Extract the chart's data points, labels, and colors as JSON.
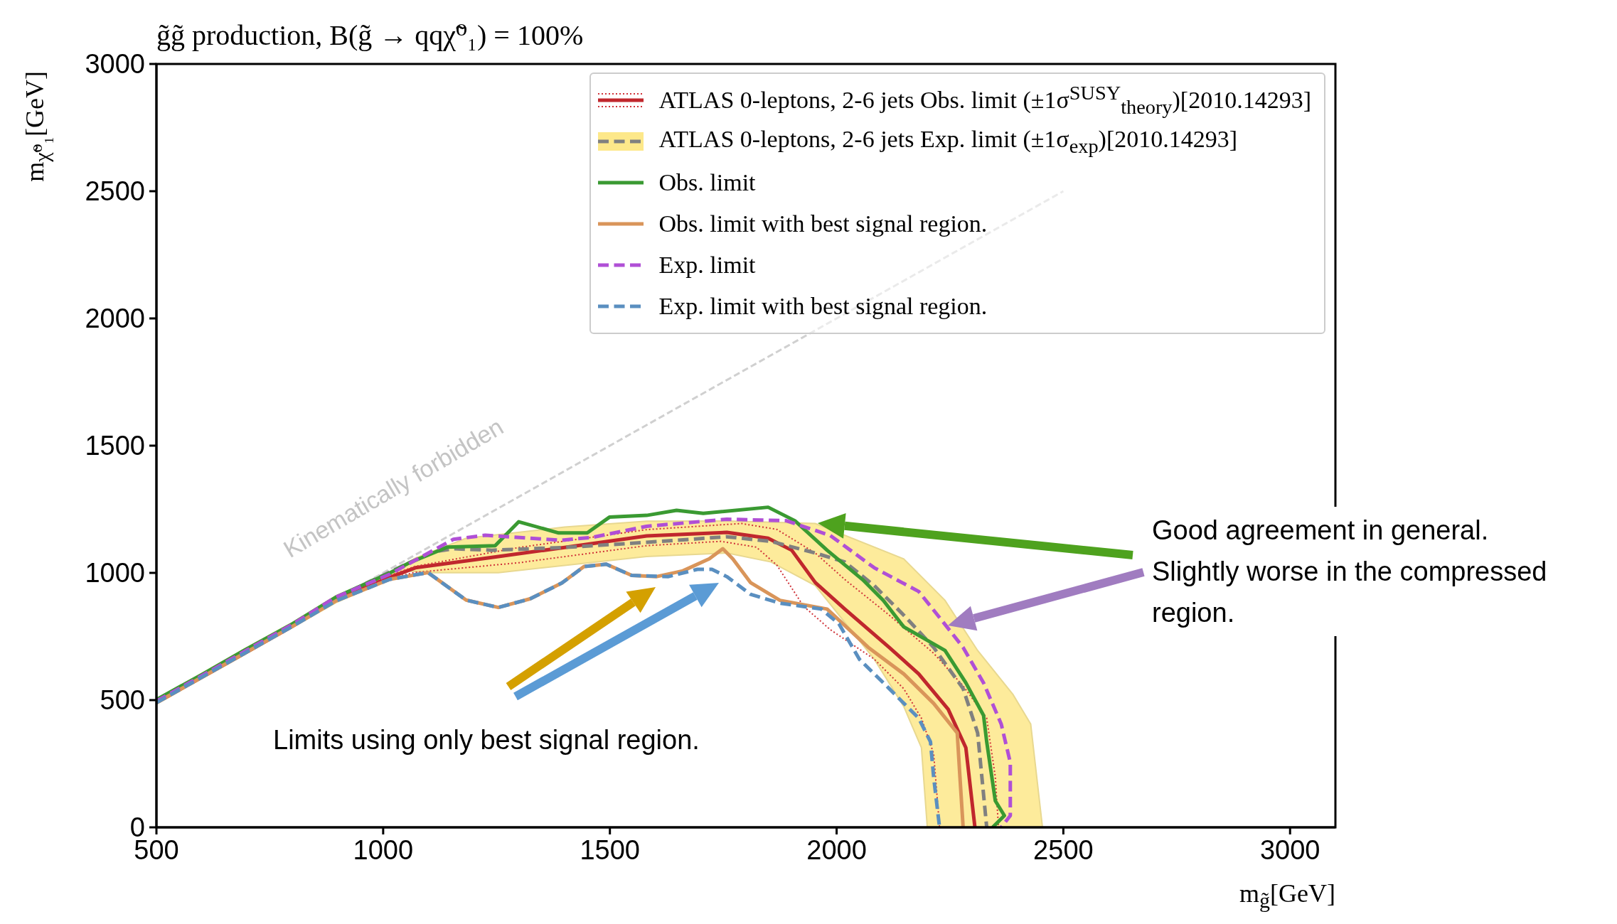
{
  "chart_data": {
    "type": "line",
    "title": "g̃g̃ production, B(g̃ → qqχ̃⁰₁) = 100%",
    "xlabel": "m$_{g̃}$[GeV]",
    "ylabel": "m$_{χ̃⁰₁}$[GeV]",
    "xlim": [
      500,
      3100
    ],
    "xticks": [
      500,
      1000,
      1500,
      2000,
      2500,
      3000
    ],
    "ylim": [
      0,
      3000
    ],
    "yticks": [
      0,
      500,
      1000,
      1500,
      2000,
      2500,
      3000
    ],
    "grid": false,
    "legend": "top right",
    "marker": "none",
    "annotations": [
      "Kinematically forbidden",
      "Good agreement in general. Slightly worse in the compressed region.",
      "Limits using only best signal region."
    ],
    "series": [
      {
        "color": "#d0d0d0",
        "line_style": "dashed",
        "x": [
          500,
          2500
        ],
        "values": [
          500,
          2500
        ]
      },
      {
        "name": "ATLAS 0-leptons,  2-6 jets Obs. limit (±1σ$^{SUSY}$$_{theory}$)[2010.14293]",
        "color": "#c0272d",
        "line_style": "solid",
        "x": [
          500,
          600,
          693,
          800,
          896,
          1015,
          1071,
          1254,
          1400,
          1581,
          1758,
          1849,
          1901,
          1953,
          2018,
          2116,
          2181,
          2246,
          2285,
          2305
        ],
        "values": [
          490,
          590,
          683,
          790,
          895,
          983,
          1020,
          1064,
          1100,
          1145,
          1159,
          1136,
          1089,
          962,
          858,
          707,
          603,
          464,
          313,
          0
        ]
      },
      {
        "color": "#d0343a",
        "line_style": "dotted",
        "x": [
          500,
          600,
          693,
          800,
          896,
          1015,
          1071,
          1300,
          1581,
          1790,
          1868,
          1953,
          2018,
          2116,
          2214,
          2279,
          2331,
          2350,
          2357
        ],
        "values": [
          490,
          590,
          683,
          790,
          895,
          990,
          1026,
          1100,
          1170,
          1194,
          1171,
          1078,
          974,
          834,
          684,
          556,
          429,
          197,
          0
        ]
      },
      {
        "color": "#d0343a",
        "line_style": "dotted",
        "x": [
          500,
          600,
          693,
          800,
          896,
          1015,
          1071,
          1300,
          1581,
          1745,
          1823,
          1868,
          1927,
          1986,
          2083,
          2148,
          2187,
          2214,
          2227
        ],
        "values": [
          490,
          590,
          683,
          790,
          895,
          980,
          1002,
          1040,
          1107,
          1124,
          1101,
          1031,
          869,
          777,
          661,
          545,
          429,
          290,
          0
        ]
      },
      {
        "name": "ATLAS 0-leptons,  2-6 jets Exp. limit (±1σ$_{exp}$)[2010.14293]",
        "color": "#808080",
        "line_style": "dashed",
        "x": [
          500,
          600,
          693,
          800,
          896,
          1057,
          1113,
          1155,
          1240,
          1400,
          1581,
          1758,
          1855,
          1953,
          2018,
          2083,
          2148,
          2214,
          2279,
          2311,
          2331
        ],
        "values": [
          496,
          596,
          690,
          795,
          902,
          1039,
          1083,
          1095,
          1089,
          1100,
          1120,
          1142,
          1124,
          1078,
          1043,
          950,
          834,
          707,
          545,
          371,
          0
        ]
      },
      {
        "type": "area",
        "color": "#fde88a",
        "x": [
          500,
          600,
          693,
          800,
          896,
          1015,
          1071,
          1183,
          1400,
          1581,
          1758,
          1953,
          2148,
          2239,
          2311,
          2389,
          2428,
          2454,
          2200,
          2187,
          2148,
          2083,
          1953,
          1855,
          1758,
          1581,
          1254,
          1113,
          1057,
          896,
          693,
          500
        ],
        "values": [
          505,
          605,
          700,
          805,
          910,
          1000,
          1058,
          1136,
          1180,
          1203,
          1204,
          1194,
          1055,
          892,
          695,
          522,
          406,
          0,
          0,
          313,
          475,
          661,
          950,
          1043,
          1078,
          1064,
          1001,
          1001,
          1007,
          883,
          677,
          484
        ]
      },
      {
        "name": "Obs. limit",
        "color": "#3a9a32",
        "line_style": "solid",
        "x": [
          500,
          600,
          693,
          800,
          896,
          1015,
          1057,
          1141,
          1247,
          1299,
          1387,
          1450,
          1499,
          1581,
          1647,
          1706,
          1849,
          1908,
          1979,
          2057,
          2103,
          2148,
          2239,
          2285,
          2324,
          2331,
          2350,
          2370,
          2344
        ],
        "values": [
          502,
          600,
          695,
          800,
          905,
          1000,
          1039,
          1101,
          1107,
          1201,
          1157,
          1157,
          1219,
          1226,
          1246,
          1234,
          1258,
          1205,
          1089,
          974,
          892,
          788,
          695,
          568,
          440,
          336,
          104,
          46,
          0
        ]
      },
      {
        "name": "Obs. limit with best signal region.",
        "color": "#d9955a",
        "line_style": "solid",
        "x": [
          500,
          600,
          693,
          800,
          896,
          1015,
          1099,
          1183,
          1254,
          1324,
          1394,
          1443,
          1492,
          1548,
          1602,
          1661,
          1719,
          1749,
          1771,
          1810,
          1875,
          1979,
          2070,
          2148,
          2214,
          2266,
          2272,
          2279
        ],
        "values": [
          490,
          590,
          683,
          790,
          890,
          975,
          1001,
          893,
          864,
          898,
          960,
          1025,
          1034,
          990,
          985,
          1008,
          1055,
          1095,
          1055,
          962,
          892,
          858,
          707,
          603,
          487,
          371,
          197,
          0
        ]
      },
      {
        "name": "Exp. limit",
        "color": "#b04fd6",
        "line_style": "dashed",
        "x": [
          500,
          600,
          693,
          800,
          896,
          1015,
          1155,
          1225,
          1392,
          1462,
          1581,
          1758,
          1889,
          1986,
          2083,
          2181,
          2233,
          2279,
          2324,
          2363,
          2383,
          2383,
          2363
        ],
        "values": [
          496,
          596,
          690,
          798,
          905,
          995,
          1132,
          1148,
          1128,
          1140,
          1183,
          1211,
          1205,
          1147,
          1020,
          927,
          811,
          707,
          568,
          406,
          255,
          46,
          0
        ]
      },
      {
        "name": "Exp. limit with best signal region.",
        "color": "#5a8fc0",
        "line_style": "dashed",
        "x": [
          500,
          600,
          693,
          800,
          896,
          1015,
          1099,
          1183,
          1254,
          1324,
          1394,
          1443,
          1492,
          1548,
          1628,
          1693,
          1725,
          1758,
          1810,
          1875,
          1966,
          2005,
          2050,
          2116,
          2181,
          2207,
          2214,
          2227
        ],
        "values": [
          490,
          590,
          683,
          790,
          890,
          975,
          1001,
          893,
          864,
          898,
          960,
          1025,
          1034,
          990,
          985,
          1014,
          1014,
          985,
          916,
          881,
          858,
          800,
          661,
          545,
          429,
          336,
          197,
          0
        ]
      }
    ]
  }
}
